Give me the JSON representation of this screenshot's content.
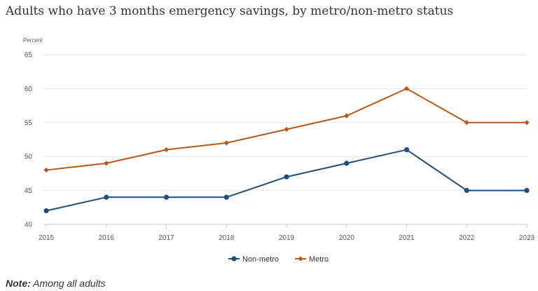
{
  "chart_data": {
    "type": "line",
    "title": "Adults who have 3 months emergency savings, by metro/non-metro status",
    "ylabel": "Percent",
    "xlabel": "",
    "ylim": [
      40,
      65
    ],
    "yticks": [
      "40",
      "45",
      "50",
      "55",
      "60",
      "65"
    ],
    "x": [
      "2015",
      "2016",
      "2017",
      "2018",
      "2019",
      "2020",
      "2021",
      "2022",
      "2023"
    ],
    "grid": "horizontal",
    "legend": "bottom-center",
    "series": [
      {
        "name": "Non-metro",
        "color": "#1f4e79",
        "marker": "circle",
        "values": [
          42,
          44,
          44,
          44,
          47,
          49,
          51,
          45,
          45
        ]
      },
      {
        "name": "Metro",
        "color": "#b5591b",
        "marker": "diamond",
        "values": [
          48,
          49,
          51,
          52,
          54,
          56,
          60,
          55,
          55
        ]
      }
    ]
  },
  "note": {
    "label": "Note:",
    "text": " Among all adults"
  }
}
